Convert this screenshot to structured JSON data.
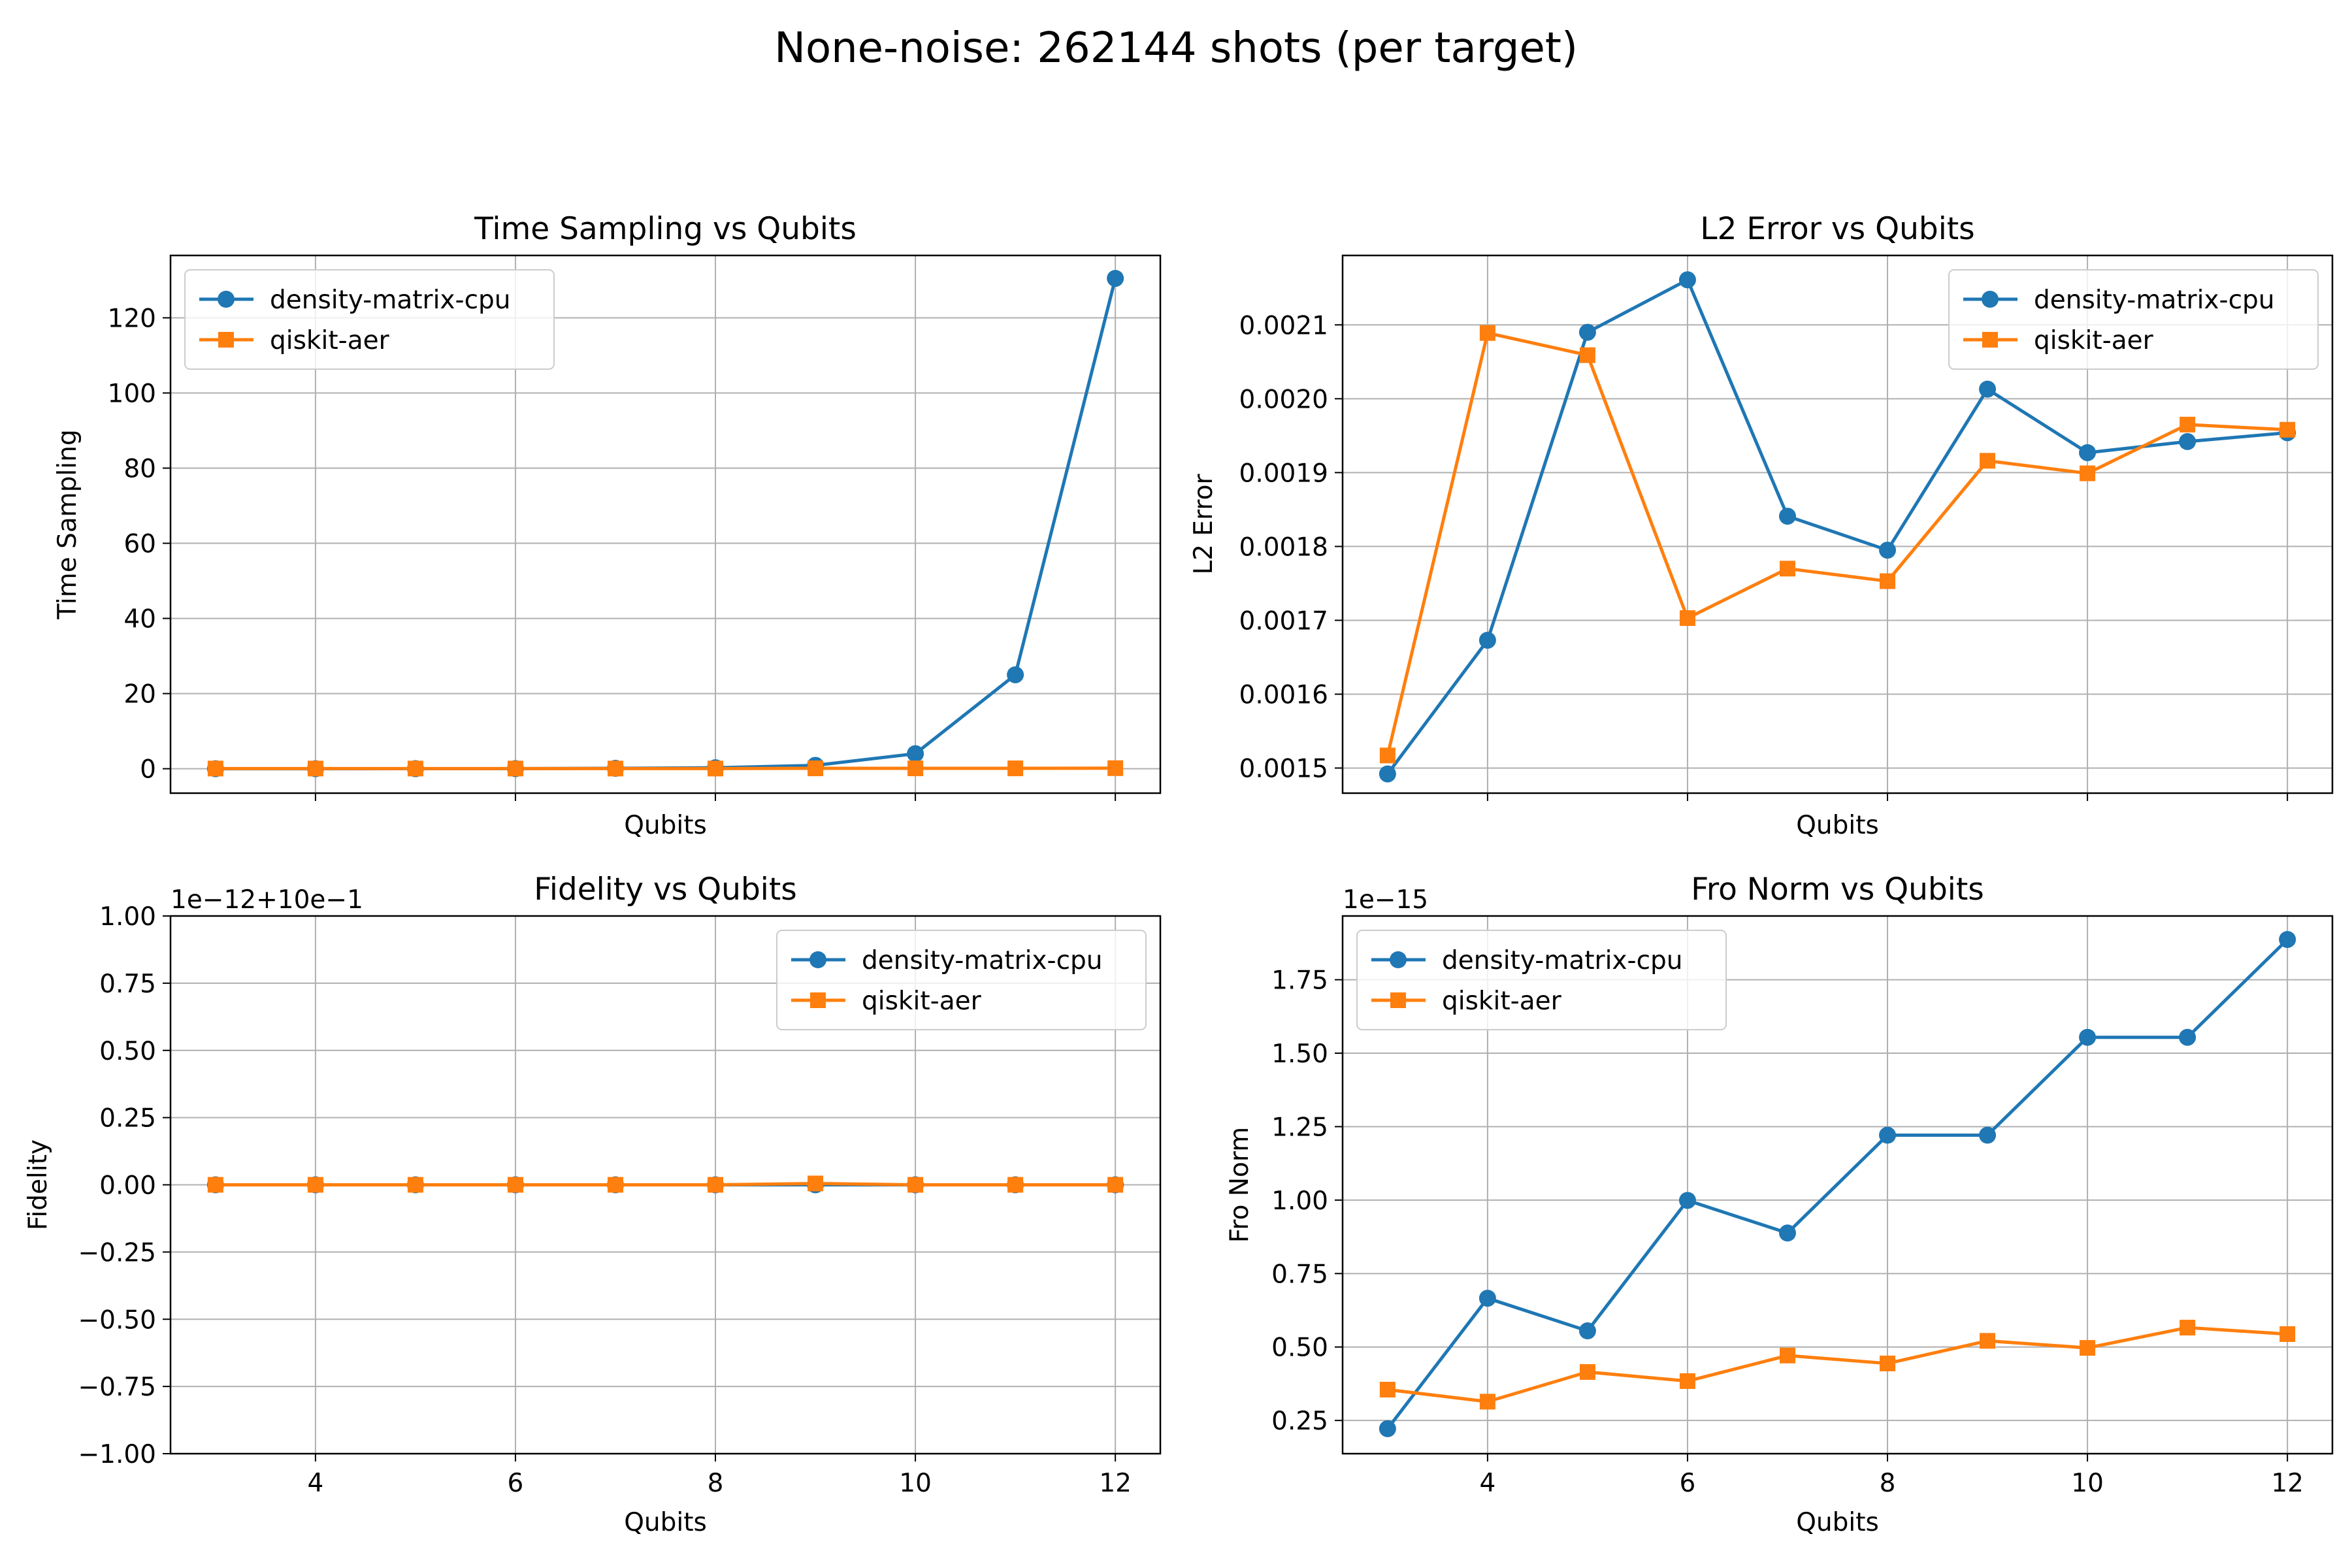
{
  "figure": {
    "title": "None-noise: 262144 shots (per target)"
  },
  "colors": {
    "density_matrix_cpu": "#1f77b4",
    "qiskit_aer": "#ff7f0e",
    "grid": "#b0b0b0"
  },
  "chart_data": [
    {
      "id": "time",
      "type": "line",
      "title": "Time Sampling vs Qubits",
      "xlabel": "Qubits",
      "ylabel": "Time Sampling",
      "offset_text": "",
      "x": [
        3,
        4,
        5,
        6,
        7,
        8,
        9,
        10,
        11,
        12
      ],
      "xlim": [
        2.55,
        12.45
      ],
      "ylim": [
        -6.5,
        136.6
      ],
      "xticks": [
        4,
        6,
        8,
        10,
        12
      ],
      "xtick_labels": [
        "",
        "",
        "",
        "",
        ""
      ],
      "yticks": [
        0,
        20,
        40,
        60,
        80,
        100,
        120
      ],
      "ytick_labels": [
        "0",
        "20",
        "40",
        "60",
        "80",
        "100",
        "120"
      ],
      "grid": true,
      "legend": "upper left",
      "series": [
        {
          "name": "density-matrix-cpu",
          "marker": "circle",
          "color": "#1f77b4",
          "values": [
            0.002,
            0.005,
            0.01,
            0.03,
            0.1,
            0.25,
            0.9,
            4.0,
            25.0,
            130.5
          ]
        },
        {
          "name": "qiskit-aer",
          "marker": "square",
          "color": "#ff7f0e",
          "values": [
            0.05,
            0.05,
            0.05,
            0.05,
            0.05,
            0.05,
            0.1,
            0.1,
            0.1,
            0.15
          ]
        }
      ]
    },
    {
      "id": "l2",
      "type": "line",
      "title": "L2 Error vs Qubits",
      "xlabel": "Qubits",
      "ylabel": "L2 Error",
      "offset_text": "",
      "x": [
        3,
        4,
        5,
        6,
        7,
        8,
        9,
        10,
        11,
        12
      ],
      "xlim": [
        2.55,
        12.45
      ],
      "ylim": [
        0.001466,
        0.002194
      ],
      "xticks": [
        4,
        6,
        8,
        10,
        12
      ],
      "xtick_labels": [
        "",
        "",
        "",
        "",
        ""
      ],
      "yticks": [
        0.0015,
        0.0016,
        0.0017,
        0.0018,
        0.0019,
        0.002,
        0.0021
      ],
      "ytick_labels": [
        "0.0015",
        "0.0016",
        "0.0017",
        "0.0018",
        "0.0019",
        "0.0020",
        "0.0021"
      ],
      "grid": true,
      "legend": "upper right",
      "series": [
        {
          "name": "density-matrix-cpu",
          "marker": "circle",
          "color": "#1f77b4",
          "values": [
            0.001492,
            0.001673,
            0.00209,
            0.002161,
            0.001841,
            0.001795,
            0.002013,
            0.001927,
            0.001942,
            0.001954
          ]
        },
        {
          "name": "qiskit-aer",
          "marker": "square",
          "color": "#ff7f0e",
          "values": [
            0.001517,
            0.002089,
            0.002059,
            0.001703,
            0.00177,
            0.001753,
            0.001916,
            0.001899,
            0.001965,
            0.001958
          ]
        }
      ]
    },
    {
      "id": "fidelity",
      "type": "line",
      "title": "Fidelity vs Qubits",
      "xlabel": "Qubits",
      "ylabel": "Fidelity",
      "offset_text": "1e−12+10e−1",
      "x": [
        3,
        4,
        5,
        6,
        7,
        8,
        9,
        10,
        11,
        12
      ],
      "xlim": [
        2.55,
        12.45
      ],
      "ylim": [
        -1.0,
        1.0
      ],
      "xticks": [
        4,
        6,
        8,
        10,
        12
      ],
      "xtick_labels": [
        "4",
        "6",
        "8",
        "10",
        "12"
      ],
      "yticks": [
        -1.0,
        -0.75,
        -0.5,
        -0.25,
        0.0,
        0.25,
        0.5,
        0.75,
        1.0
      ],
      "ytick_labels": [
        "−1.00",
        "−0.75",
        "−0.50",
        "−0.25",
        "0.00",
        "0.25",
        "0.50",
        "0.75",
        "1.00"
      ],
      "grid": true,
      "legend": "upper right",
      "series": [
        {
          "name": "density-matrix-cpu",
          "marker": "circle",
          "color": "#1f77b4",
          "values": [
            0.0,
            0.0,
            0.0,
            0.0,
            0.0,
            0.0,
            0.0,
            0.0,
            0.0,
            0.0
          ]
        },
        {
          "name": "qiskit-aer",
          "marker": "square",
          "color": "#ff7f0e",
          "values": [
            0.0,
            0.0,
            0.0,
            0.0,
            0.0,
            0.0,
            0.005,
            0.0,
            0.0,
            0.0
          ]
        }
      ]
    },
    {
      "id": "fro",
      "type": "line",
      "title": "Fro Norm vs Qubits",
      "xlabel": "Qubits",
      "ylabel": "Fro Norm",
      "offset_text": "1e−15",
      "x": [
        3,
        4,
        5,
        6,
        7,
        8,
        9,
        10,
        11,
        12
      ],
      "xlim": [
        2.55,
        12.45
      ],
      "ylim": [
        0.137,
        1.967
      ],
      "xticks": [
        4,
        6,
        8,
        10,
        12
      ],
      "xtick_labels": [
        "4",
        "6",
        "8",
        "10",
        "12"
      ],
      "yticks": [
        0.25,
        0.5,
        0.75,
        1.0,
        1.25,
        1.5,
        1.75
      ],
      "ytick_labels": [
        "0.25",
        "0.50",
        "0.75",
        "1.00",
        "1.25",
        "1.50",
        "1.75"
      ],
      "grid": true,
      "legend": "upper left",
      "series": [
        {
          "name": "density-matrix-cpu",
          "marker": "circle",
          "color": "#1f77b4",
          "values": [
            0.222,
            0.666,
            0.555,
            0.999,
            0.888,
            1.221,
            1.221,
            1.554,
            1.554,
            1.887
          ]
        },
        {
          "name": "qiskit-aer",
          "marker": "square",
          "color": "#ff7f0e",
          "values": [
            0.355,
            0.314,
            0.415,
            0.384,
            0.471,
            0.444,
            0.521,
            0.497,
            0.566,
            0.544
          ]
        }
      ]
    }
  ]
}
